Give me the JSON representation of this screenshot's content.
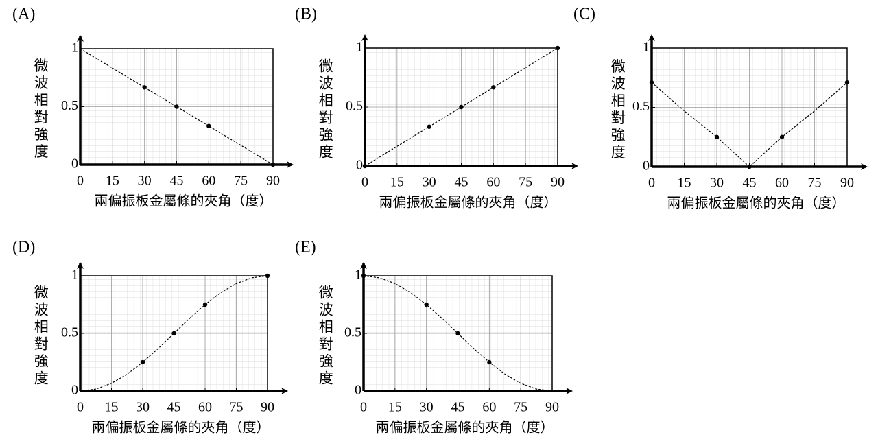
{
  "chart_data": [
    {
      "type": "line",
      "panel": "(A)",
      "y_label": "微波相對強度",
      "x_label": "兩偏振板金屬條的夾角（度）",
      "xlim": [
        0,
        90
      ],
      "ylim": [
        0,
        1
      ],
      "xticks": [
        0,
        15,
        30,
        45,
        60,
        75,
        90
      ],
      "yticks": [
        0,
        0.5,
        1
      ],
      "grid": true,
      "color": "#000000",
      "series": [
        {
          "style": "dashed",
          "x": [
            0,
            90
          ],
          "values": [
            1,
            0
          ]
        },
        {
          "style": "markers",
          "x": [
            30,
            45,
            60,
            90
          ],
          "values": [
            0.667,
            0.5,
            0.333,
            0
          ]
        }
      ]
    },
    {
      "type": "line",
      "panel": "(B)",
      "y_label": "微波相對強度",
      "x_label": "兩偏振板金屬條的夾角（度）",
      "xlim": [
        0,
        90
      ],
      "ylim": [
        0,
        1
      ],
      "xticks": [
        0,
        15,
        30,
        45,
        60,
        75,
        90
      ],
      "yticks": [
        0,
        0.5,
        1
      ],
      "grid": true,
      "color": "#000000",
      "series": [
        {
          "style": "dashed",
          "x": [
            0,
            90
          ],
          "values": [
            0,
            1
          ]
        },
        {
          "style": "markers",
          "x": [
            0,
            30,
            45,
            60,
            90
          ],
          "values": [
            0,
            0.333,
            0.5,
            0.667,
            1
          ]
        }
      ]
    },
    {
      "type": "line",
      "panel": "(C)",
      "y_label": "微波相對強度",
      "x_label": "兩偏振板金屬條的夾角（度）",
      "xlim": [
        0,
        90
      ],
      "ylim": [
        0,
        1
      ],
      "xticks": [
        0,
        15,
        30,
        45,
        60,
        75,
        90
      ],
      "yticks": [
        0,
        0.5,
        1
      ],
      "grid": true,
      "color": "#000000",
      "series": [
        {
          "style": "dashed",
          "x": [
            0,
            15,
            30,
            45,
            60,
            75,
            90
          ],
          "values": [
            0.71,
            0.47,
            0.25,
            0,
            0.25,
            0.47,
            0.71
          ]
        },
        {
          "style": "markers",
          "x": [
            0,
            30,
            45,
            60,
            90
          ],
          "values": [
            0.71,
            0.25,
            0,
            0.25,
            0.71
          ]
        }
      ]
    },
    {
      "type": "line",
      "panel": "(D)",
      "y_label": "微波相對強度",
      "x_label": "兩偏振板金屬條的夾角（度）",
      "xlim": [
        0,
        90
      ],
      "ylim": [
        0,
        1
      ],
      "xticks": [
        0,
        15,
        30,
        45,
        60,
        75,
        90
      ],
      "yticks": [
        0,
        0.5,
        1
      ],
      "grid": true,
      "color": "#000000",
      "series": [
        {
          "style": "dashed",
          "x": [
            0,
            7.5,
            15,
            22.5,
            30,
            37.5,
            45,
            52.5,
            60,
            67.5,
            75,
            82.5,
            90
          ],
          "values": [
            0,
            0.017,
            0.067,
            0.146,
            0.25,
            0.37,
            0.5,
            0.63,
            0.75,
            0.854,
            0.933,
            0.983,
            1
          ]
        },
        {
          "style": "markers",
          "x": [
            30,
            45,
            60,
            90
          ],
          "values": [
            0.25,
            0.5,
            0.75,
            1
          ]
        }
      ]
    },
    {
      "type": "line",
      "panel": "(E)",
      "y_label": "微波相對強度",
      "x_label": "兩偏振板金屬條的夾角（度）",
      "xlim": [
        0,
        90
      ],
      "ylim": [
        0,
        1
      ],
      "xticks": [
        0,
        15,
        30,
        45,
        60,
        75,
        90
      ],
      "yticks": [
        0,
        0.5,
        1
      ],
      "grid": true,
      "color": "#000000",
      "series": [
        {
          "style": "dashed",
          "x": [
            0,
            7.5,
            15,
            22.5,
            30,
            37.5,
            45,
            52.5,
            60,
            67.5,
            75,
            82.5,
            90
          ],
          "values": [
            1,
            0.983,
            0.933,
            0.854,
            0.75,
            0.63,
            0.5,
            0.37,
            0.25,
            0.146,
            0.067,
            0.017,
            0
          ]
        },
        {
          "style": "markers",
          "x": [
            0,
            30,
            45,
            60
          ],
          "values": [
            1,
            0.75,
            0.5,
            0.25
          ]
        }
      ]
    }
  ]
}
